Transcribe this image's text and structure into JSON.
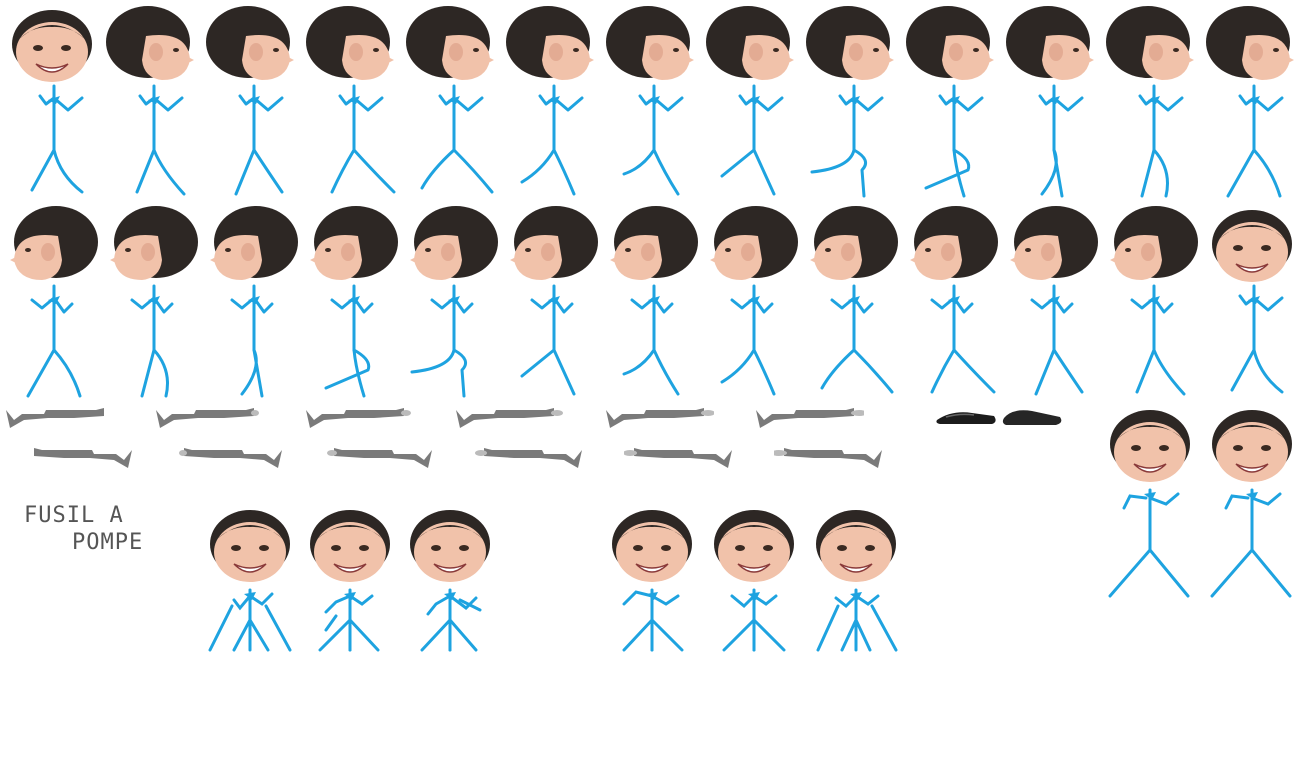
{
  "sheet": {
    "background": "#ffffff",
    "stick_color": "#1ea3e0",
    "skin_color": "#f1c2aa",
    "hair_color": "#2d2724",
    "gun_color": "#7a7a7a",
    "label": {
      "line1": "FUSIL A",
      "line2": "POMPE"
    }
  }
}
